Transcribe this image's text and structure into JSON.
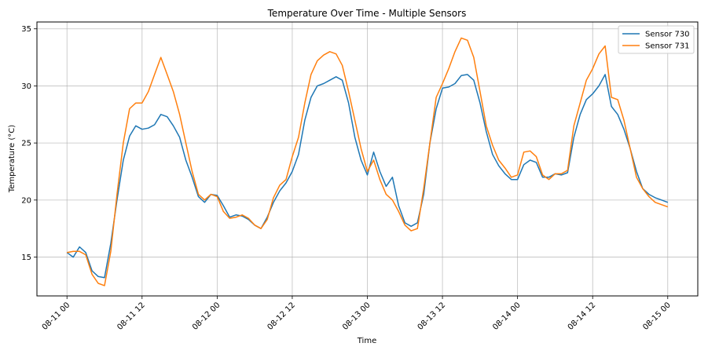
{
  "chart_data": {
    "type": "line",
    "title": "Temperature Over Time - Multiple Sensors",
    "xlabel": "Time",
    "ylabel": "Temperature (°C)",
    "x_unit": "hours",
    "x_tick_labels": [
      "08-11 00",
      "08-11 12",
      "08-12 00",
      "08-12 12",
      "08-13 00",
      "08-13 12",
      "08-14 00",
      "08-14 12",
      "08-15 00"
    ],
    "x_tick_values": [
      0,
      12,
      24,
      36,
      48,
      60,
      72,
      84,
      96
    ],
    "xlim": [
      -4.8,
      100.8
    ],
    "y_ticks": [
      15,
      20,
      25,
      30,
      35
    ],
    "ylim": [
      11.6,
      35.6
    ],
    "grid": true,
    "legend_position": "upper right",
    "series": [
      {
        "name": "Sensor 730",
        "color": "#1f77b4",
        "points": [
          [
            0,
            15.4
          ],
          [
            1,
            15.0
          ],
          [
            2,
            15.9
          ],
          [
            3,
            15.4
          ],
          [
            4,
            13.8
          ],
          [
            5,
            13.3
          ],
          [
            6,
            13.2
          ],
          [
            7,
            16.2
          ],
          [
            8,
            20.0
          ],
          [
            9,
            23.5
          ],
          [
            10,
            25.6
          ],
          [
            11,
            26.5
          ],
          [
            12,
            26.2
          ],
          [
            13,
            26.3
          ],
          [
            14,
            26.6
          ],
          [
            15,
            27.5
          ],
          [
            16,
            27.3
          ],
          [
            17,
            26.5
          ],
          [
            18,
            25.5
          ],
          [
            19,
            23.5
          ],
          [
            20,
            22.0
          ],
          [
            21,
            20.3
          ],
          [
            22,
            19.8
          ],
          [
            23,
            20.5
          ],
          [
            24,
            20.4
          ],
          [
            25,
            19.5
          ],
          [
            26,
            18.5
          ],
          [
            27,
            18.7
          ],
          [
            28,
            18.6
          ],
          [
            29,
            18.3
          ],
          [
            30,
            17.8
          ],
          [
            31,
            17.5
          ],
          [
            32,
            18.5
          ],
          [
            33,
            19.8
          ],
          [
            34,
            20.8
          ],
          [
            35,
            21.5
          ],
          [
            36,
            22.5
          ],
          [
            37,
            24.0
          ],
          [
            38,
            27.0
          ],
          [
            39,
            29.0
          ],
          [
            40,
            30.0
          ],
          [
            41,
            30.2
          ],
          [
            42,
            30.5
          ],
          [
            43,
            30.8
          ],
          [
            44,
            30.5
          ],
          [
            45,
            28.5
          ],
          [
            46,
            25.5
          ],
          [
            47,
            23.5
          ],
          [
            48,
            22.2
          ],
          [
            49,
            24.2
          ],
          [
            50,
            22.5
          ],
          [
            51,
            21.2
          ],
          [
            52,
            22.0
          ],
          [
            53,
            19.5
          ],
          [
            54,
            18.0
          ],
          [
            55,
            17.7
          ],
          [
            56,
            18.0
          ],
          [
            57,
            20.5
          ],
          [
            58,
            25.0
          ],
          [
            59,
            28.0
          ],
          [
            60,
            29.8
          ],
          [
            61,
            29.9
          ],
          [
            62,
            30.2
          ],
          [
            63,
            30.9
          ],
          [
            64,
            31.0
          ],
          [
            65,
            30.5
          ],
          [
            66,
            28.5
          ],
          [
            67,
            26.0
          ],
          [
            68,
            24.0
          ],
          [
            69,
            23.0
          ],
          [
            70,
            22.3
          ],
          [
            71,
            21.8
          ],
          [
            72,
            21.8
          ],
          [
            73,
            23.1
          ],
          [
            74,
            23.5
          ],
          [
            75,
            23.3
          ],
          [
            76,
            22.0
          ],
          [
            77,
            22.0
          ],
          [
            78,
            22.3
          ],
          [
            79,
            22.2
          ],
          [
            80,
            22.4
          ],
          [
            81,
            25.5
          ],
          [
            82,
            27.5
          ],
          [
            83,
            28.8
          ],
          [
            84,
            29.3
          ],
          [
            85,
            30.0
          ],
          [
            86,
            31.0
          ],
          [
            87,
            28.2
          ],
          [
            88,
            27.5
          ],
          [
            89,
            26.2
          ],
          [
            90,
            24.5
          ],
          [
            91,
            22.5
          ],
          [
            92,
            21.0
          ],
          [
            93,
            20.5
          ],
          [
            94,
            20.2
          ],
          [
            95,
            20.0
          ],
          [
            96,
            19.8
          ]
        ]
      },
      {
        "name": "Sensor 731",
        "color": "#ff7f0e",
        "points": [
          [
            0,
            15.4
          ],
          [
            1,
            15.5
          ],
          [
            2,
            15.5
          ],
          [
            3,
            15.2
          ],
          [
            4,
            13.5
          ],
          [
            5,
            12.7
          ],
          [
            6,
            12.5
          ],
          [
            7,
            15.5
          ],
          [
            8,
            20.5
          ],
          [
            9,
            25.0
          ],
          [
            10,
            28.0
          ],
          [
            11,
            28.5
          ],
          [
            12,
            28.5
          ],
          [
            13,
            29.5
          ],
          [
            14,
            31.0
          ],
          [
            15,
            32.5
          ],
          [
            16,
            31.0
          ],
          [
            17,
            29.5
          ],
          [
            18,
            27.5
          ],
          [
            19,
            25.0
          ],
          [
            20,
            22.5
          ],
          [
            21,
            20.5
          ],
          [
            22,
            20.0
          ],
          [
            23,
            20.5
          ],
          [
            24,
            20.3
          ],
          [
            25,
            19.0
          ],
          [
            26,
            18.4
          ],
          [
            27,
            18.5
          ],
          [
            28,
            18.7
          ],
          [
            29,
            18.4
          ],
          [
            30,
            17.8
          ],
          [
            31,
            17.5
          ],
          [
            32,
            18.3
          ],
          [
            33,
            20.2
          ],
          [
            34,
            21.3
          ],
          [
            35,
            21.8
          ],
          [
            36,
            23.8
          ],
          [
            37,
            25.5
          ],
          [
            38,
            28.5
          ],
          [
            39,
            31.0
          ],
          [
            40,
            32.2
          ],
          [
            41,
            32.7
          ],
          [
            42,
            33.0
          ],
          [
            43,
            32.8
          ],
          [
            44,
            31.8
          ],
          [
            45,
            29.5
          ],
          [
            46,
            27.0
          ],
          [
            47,
            24.5
          ],
          [
            48,
            22.5
          ],
          [
            49,
            23.5
          ],
          [
            50,
            21.8
          ],
          [
            51,
            20.5
          ],
          [
            52,
            20.0
          ],
          [
            53,
            19.0
          ],
          [
            54,
            17.8
          ],
          [
            55,
            17.3
          ],
          [
            56,
            17.5
          ],
          [
            57,
            21.0
          ],
          [
            58,
            25.0
          ],
          [
            59,
            29.0
          ],
          [
            60,
            30.2
          ],
          [
            61,
            31.5
          ],
          [
            62,
            33.0
          ],
          [
            63,
            34.2
          ],
          [
            64,
            34.0
          ],
          [
            65,
            32.5
          ],
          [
            66,
            29.5
          ],
          [
            67,
            26.5
          ],
          [
            68,
            24.8
          ],
          [
            69,
            23.5
          ],
          [
            70,
            22.8
          ],
          [
            71,
            22.0
          ],
          [
            72,
            22.2
          ],
          [
            73,
            24.2
          ],
          [
            74,
            24.3
          ],
          [
            75,
            23.8
          ],
          [
            76,
            22.2
          ],
          [
            77,
            21.8
          ],
          [
            78,
            22.3
          ],
          [
            79,
            22.3
          ],
          [
            80,
            22.6
          ],
          [
            81,
            26.5
          ],
          [
            82,
            28.5
          ],
          [
            83,
            30.5
          ],
          [
            84,
            31.5
          ],
          [
            85,
            32.8
          ],
          [
            86,
            33.5
          ],
          [
            87,
            29.0
          ],
          [
            88,
            28.8
          ],
          [
            89,
            27.0
          ],
          [
            90,
            24.5
          ],
          [
            91,
            22.0
          ],
          [
            92,
            21.0
          ],
          [
            93,
            20.3
          ],
          [
            94,
            19.8
          ],
          [
            95,
            19.6
          ],
          [
            96,
            19.4
          ]
        ]
      }
    ]
  }
}
